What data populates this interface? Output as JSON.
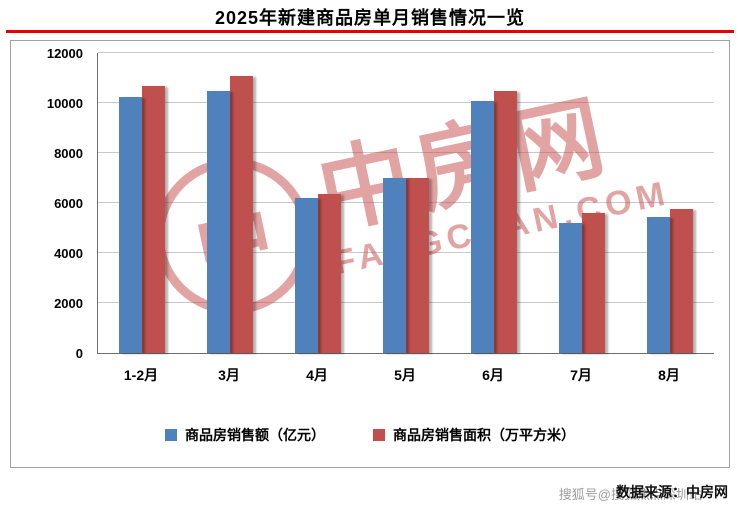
{
  "title": "2025年新建商品房单月销售情况一览",
  "colors": {
    "underline": "#e60000",
    "watermark": "rgba(198,72,72,0.5)",
    "series_blue": "#4f81bd",
    "series_red": "#c0504d"
  },
  "watermark": {
    "logo_glyph": "中",
    "cn": "中房网",
    "en": "FANGCHAN.COM"
  },
  "source": {
    "label": "数据来源：中房网",
    "overlay": "搜狐号@搜狐焦点深圳站"
  },
  "chart_data": {
    "type": "bar",
    "title": "2025年新建商品房单月销售情况一览",
    "categories": [
      "1-2月",
      "3月",
      "4月",
      "5月",
      "6月",
      "7月",
      "8月"
    ],
    "series": [
      {
        "name": "商品房销售额（亿元）",
        "color": "#4f81bd",
        "values": [
          10250,
          10500,
          6200,
          7000,
          10100,
          5200,
          5450
        ]
      },
      {
        "name": "商品房销售面积（万平方米）",
        "color": "#c0504d",
        "values": [
          10700,
          11100,
          6350,
          7000,
          10500,
          5600,
          5750
        ]
      }
    ],
    "xlabel": "",
    "ylabel": "",
    "ylim": [
      0,
      12000
    ],
    "ytick_step": 2000,
    "yticks": [
      0,
      2000,
      4000,
      6000,
      8000,
      10000,
      12000
    ],
    "grid": true,
    "legend_position": "bottom"
  }
}
